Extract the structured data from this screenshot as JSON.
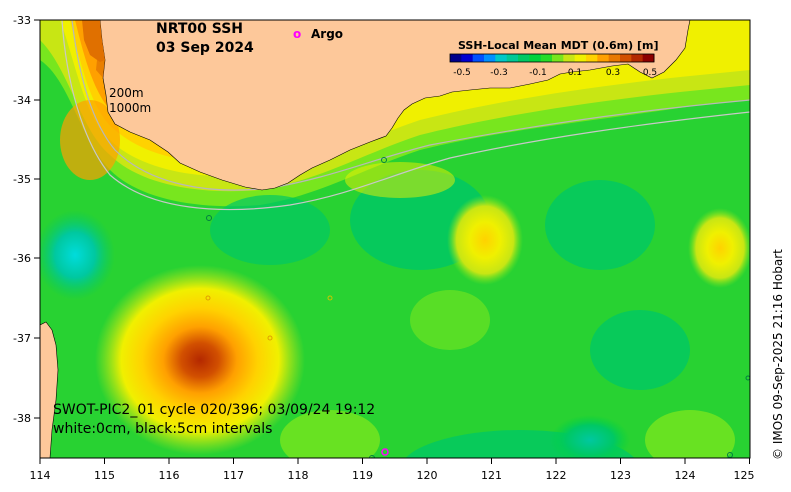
{
  "map": {
    "title_line1": "NRT00 SSH",
    "title_line2": "03 Sep 2024",
    "argo_marker": "o",
    "argo_label": "Argo",
    "isobath_200": "200m",
    "isobath_1000": "1000m",
    "colorbar": {
      "title": "SSH-Local Mean MDT (0.6m) [m]",
      "ticks": [
        "-0.5",
        "-0.3",
        "-0.1",
        "0.1",
        "0.3",
        "0.5"
      ],
      "colors": [
        "#00008b",
        "#0000d0",
        "#0050ff",
        "#0090ff",
        "#00c8c8",
        "#00c896",
        "#00c864",
        "#00d23c",
        "#28dc28",
        "#78e61e",
        "#c8e614",
        "#f0f000",
        "#ffd200",
        "#ffa000",
        "#e87800",
        "#d25000",
        "#b42800",
        "#8c0000"
      ]
    },
    "swot_line1": "SWOT-PIC2_01 cycle 020/396; 03/09/24 19:12",
    "swot_line2": "white:0cm, black:5cm intervals",
    "copyright": "© IMOS 09-Sep-2025 21:16 Hobart",
    "lat_labels": [
      "-33",
      "-34",
      "-35",
      "-36",
      "-37",
      "-38"
    ],
    "lon_labels": [
      "114",
      "115",
      "116",
      "117",
      "118",
      "119",
      "120",
      "121",
      "122",
      "123",
      "124",
      "125"
    ],
    "land_color": "#fdc89a"
  }
}
